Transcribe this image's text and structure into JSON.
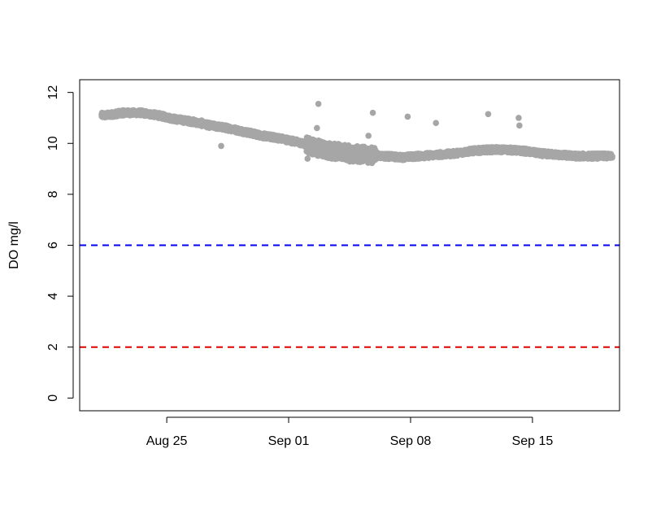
{
  "chart_data": {
    "type": "scatter",
    "title": "",
    "xlabel": "",
    "ylabel": "DO mg/l",
    "x_axis": {
      "type": "date",
      "range": [
        "2018-08-20",
        "2018-09-20"
      ],
      "ticks": [
        {
          "value": "2018-08-25",
          "label": "Aug 25"
        },
        {
          "value": "2018-09-01",
          "label": "Sep 01"
        },
        {
          "value": "2018-09-08",
          "label": "Sep 08"
        },
        {
          "value": "2018-09-15",
          "label": "Sep 15"
        }
      ]
    },
    "y_axis": {
      "range": [
        -0.5,
        12.5
      ],
      "ticks": [
        0,
        2,
        4,
        6,
        8,
        10,
        12
      ]
    },
    "grid": false,
    "point_color": "#a6a6a6",
    "reference_lines": [
      {
        "y": 6,
        "color": "#0000ee",
        "style": "dashed"
      },
      {
        "y": 2,
        "color": "#dd0000",
        "style": "dashed"
      }
    ],
    "series_trend": [
      {
        "date": "2018-08-21T12:00",
        "do": 11.1
      },
      {
        "date": "2018-08-22T12:00",
        "do": 11.2
      },
      {
        "date": "2018-08-23T12:00",
        "do": 11.2
      },
      {
        "date": "2018-08-24T12:00",
        "do": 11.1
      },
      {
        "date": "2018-08-25T12:00",
        "do": 10.95
      },
      {
        "date": "2018-08-26T12:00",
        "do": 10.85
      },
      {
        "date": "2018-08-27T12:00",
        "do": 10.7
      },
      {
        "date": "2018-08-28T12:00",
        "do": 10.6
      },
      {
        "date": "2018-08-29T12:00",
        "do": 10.45
      },
      {
        "date": "2018-08-30T12:00",
        "do": 10.3
      },
      {
        "date": "2018-08-31T12:00",
        "do": 10.2
      },
      {
        "date": "2018-09-01T12:00",
        "do": 10.05
      },
      {
        "date": "2018-09-02T12:00",
        "do": 9.85
      },
      {
        "date": "2018-09-03T12:00",
        "do": 9.7
      },
      {
        "date": "2018-09-04T12:00",
        "do": 9.6
      },
      {
        "date": "2018-09-05T12:00",
        "do": 9.55
      },
      {
        "date": "2018-09-06T12:00",
        "do": 9.5
      },
      {
        "date": "2018-09-07T12:00",
        "do": 9.45
      },
      {
        "date": "2018-09-08T12:00",
        "do": 9.5
      },
      {
        "date": "2018-09-09T12:00",
        "do": 9.55
      },
      {
        "date": "2018-09-10T12:00",
        "do": 9.6
      },
      {
        "date": "2018-09-11T12:00",
        "do": 9.7
      },
      {
        "date": "2018-09-12T12:00",
        "do": 9.75
      },
      {
        "date": "2018-09-13T12:00",
        "do": 9.75
      },
      {
        "date": "2018-09-14T12:00",
        "do": 9.7
      },
      {
        "date": "2018-09-15T12:00",
        "do": 9.6
      },
      {
        "date": "2018-09-16T12:00",
        "do": 9.55
      },
      {
        "date": "2018-09-17T12:00",
        "do": 9.5
      },
      {
        "date": "2018-09-18T12:00",
        "do": 9.5
      },
      {
        "date": "2018-09-19T12:00",
        "do": 9.5
      }
    ],
    "outliers": [
      {
        "date": "2018-08-27T00:00",
        "do": 10.9
      },
      {
        "date": "2018-08-28T03:00",
        "do": 9.9
      },
      {
        "date": "2018-09-02T02:00",
        "do": 9.4
      },
      {
        "date": "2018-09-02T15:00",
        "do": 10.6
      },
      {
        "date": "2018-09-02T17:00",
        "do": 11.55
      },
      {
        "date": "2018-09-05T14:00",
        "do": 10.3
      },
      {
        "date": "2018-09-05T20:00",
        "do": 11.2
      },
      {
        "date": "2018-09-07T20:00",
        "do": 11.05
      },
      {
        "date": "2018-09-09T11:00",
        "do": 10.8
      },
      {
        "date": "2018-09-12T11:00",
        "do": 11.15
      },
      {
        "date": "2018-09-14T05:00",
        "do": 11.0
      },
      {
        "date": "2018-09-14T06:00",
        "do": 10.7
      }
    ]
  }
}
